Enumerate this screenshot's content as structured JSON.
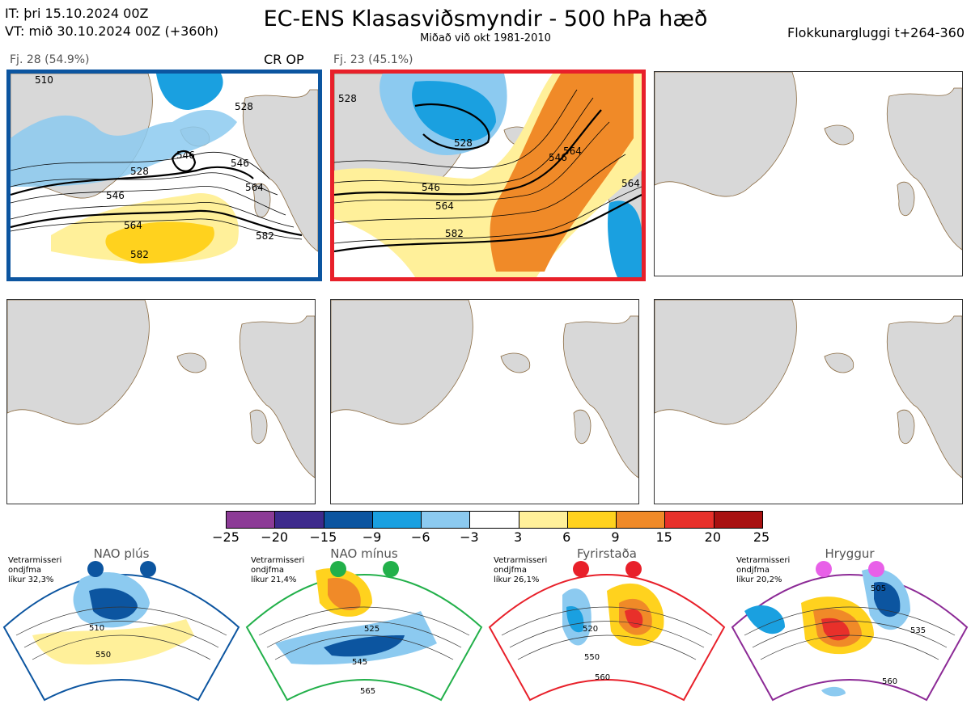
{
  "header": {
    "init_time": "IT: þri 15.10.2024 00Z",
    "valid_time": "VT: mið 30.10.2024 00Z  (+360h)",
    "title": "EC-ENS Klasasviðsmyndir - 500 hPa hæð",
    "subtitle": "Miðað við okt 1981-2010",
    "window": "Flokkunargluggi t+264-360"
  },
  "clusters": [
    {
      "label": "Fj. 28 (54.9%)",
      "badge": "CR OP",
      "border_color": "#0c55a0",
      "contours": [
        "510",
        "528",
        "546",
        "528",
        "546",
        "564",
        "582",
        "564",
        "582",
        "546"
      ]
    },
    {
      "label": "Fj. 23 (45.1%)",
      "border_color": "#e8202a",
      "contours": [
        "528",
        "546",
        "564",
        "582",
        "546",
        "564",
        "564",
        "528"
      ]
    }
  ],
  "colorbar": {
    "colors": [
      "#8c3b96",
      "#3d2a8c",
      "#0c55a0",
      "#1aa0e0",
      "#8ccaf0",
      "#ffffff",
      "#fff09a",
      "#ffd21e",
      "#f08a28",
      "#e8302a",
      "#a81010"
    ],
    "ticks": [
      "−25",
      "−20",
      "−15",
      "−9",
      "−6",
      "−3",
      "3",
      "6",
      "9",
      "15",
      "20",
      "25"
    ]
  },
  "regimes": [
    {
      "name": "NAO plús",
      "prob_lines": [
        "Vetrarmisseri",
        "ondjfma",
        "líkur 32,3%"
      ],
      "color": "#0c55a0",
      "contours": [
        "510",
        "550"
      ]
    },
    {
      "name": "NAO mínus",
      "prob_lines": [
        "Vetrarmisseri",
        "ondjfma",
        "líkur 21,4%"
      ],
      "color": "#22b04a",
      "contours": [
        "525",
        "545",
        "565"
      ]
    },
    {
      "name": "Fyrirstaða",
      "prob_lines": [
        "Vetrarmisseri",
        "ondjfma",
        "líkur 26,1%"
      ],
      "color": "#e8202a",
      "contours": [
        "520",
        "550",
        "560"
      ]
    },
    {
      "name": "Hryggur",
      "prob_lines": [
        "Vetrarmisseri",
        "ondjfma",
        "líkur 20,2%"
      ],
      "color": "#8c2a96",
      "contours": [
        "505",
        "535",
        "560"
      ]
    }
  ]
}
